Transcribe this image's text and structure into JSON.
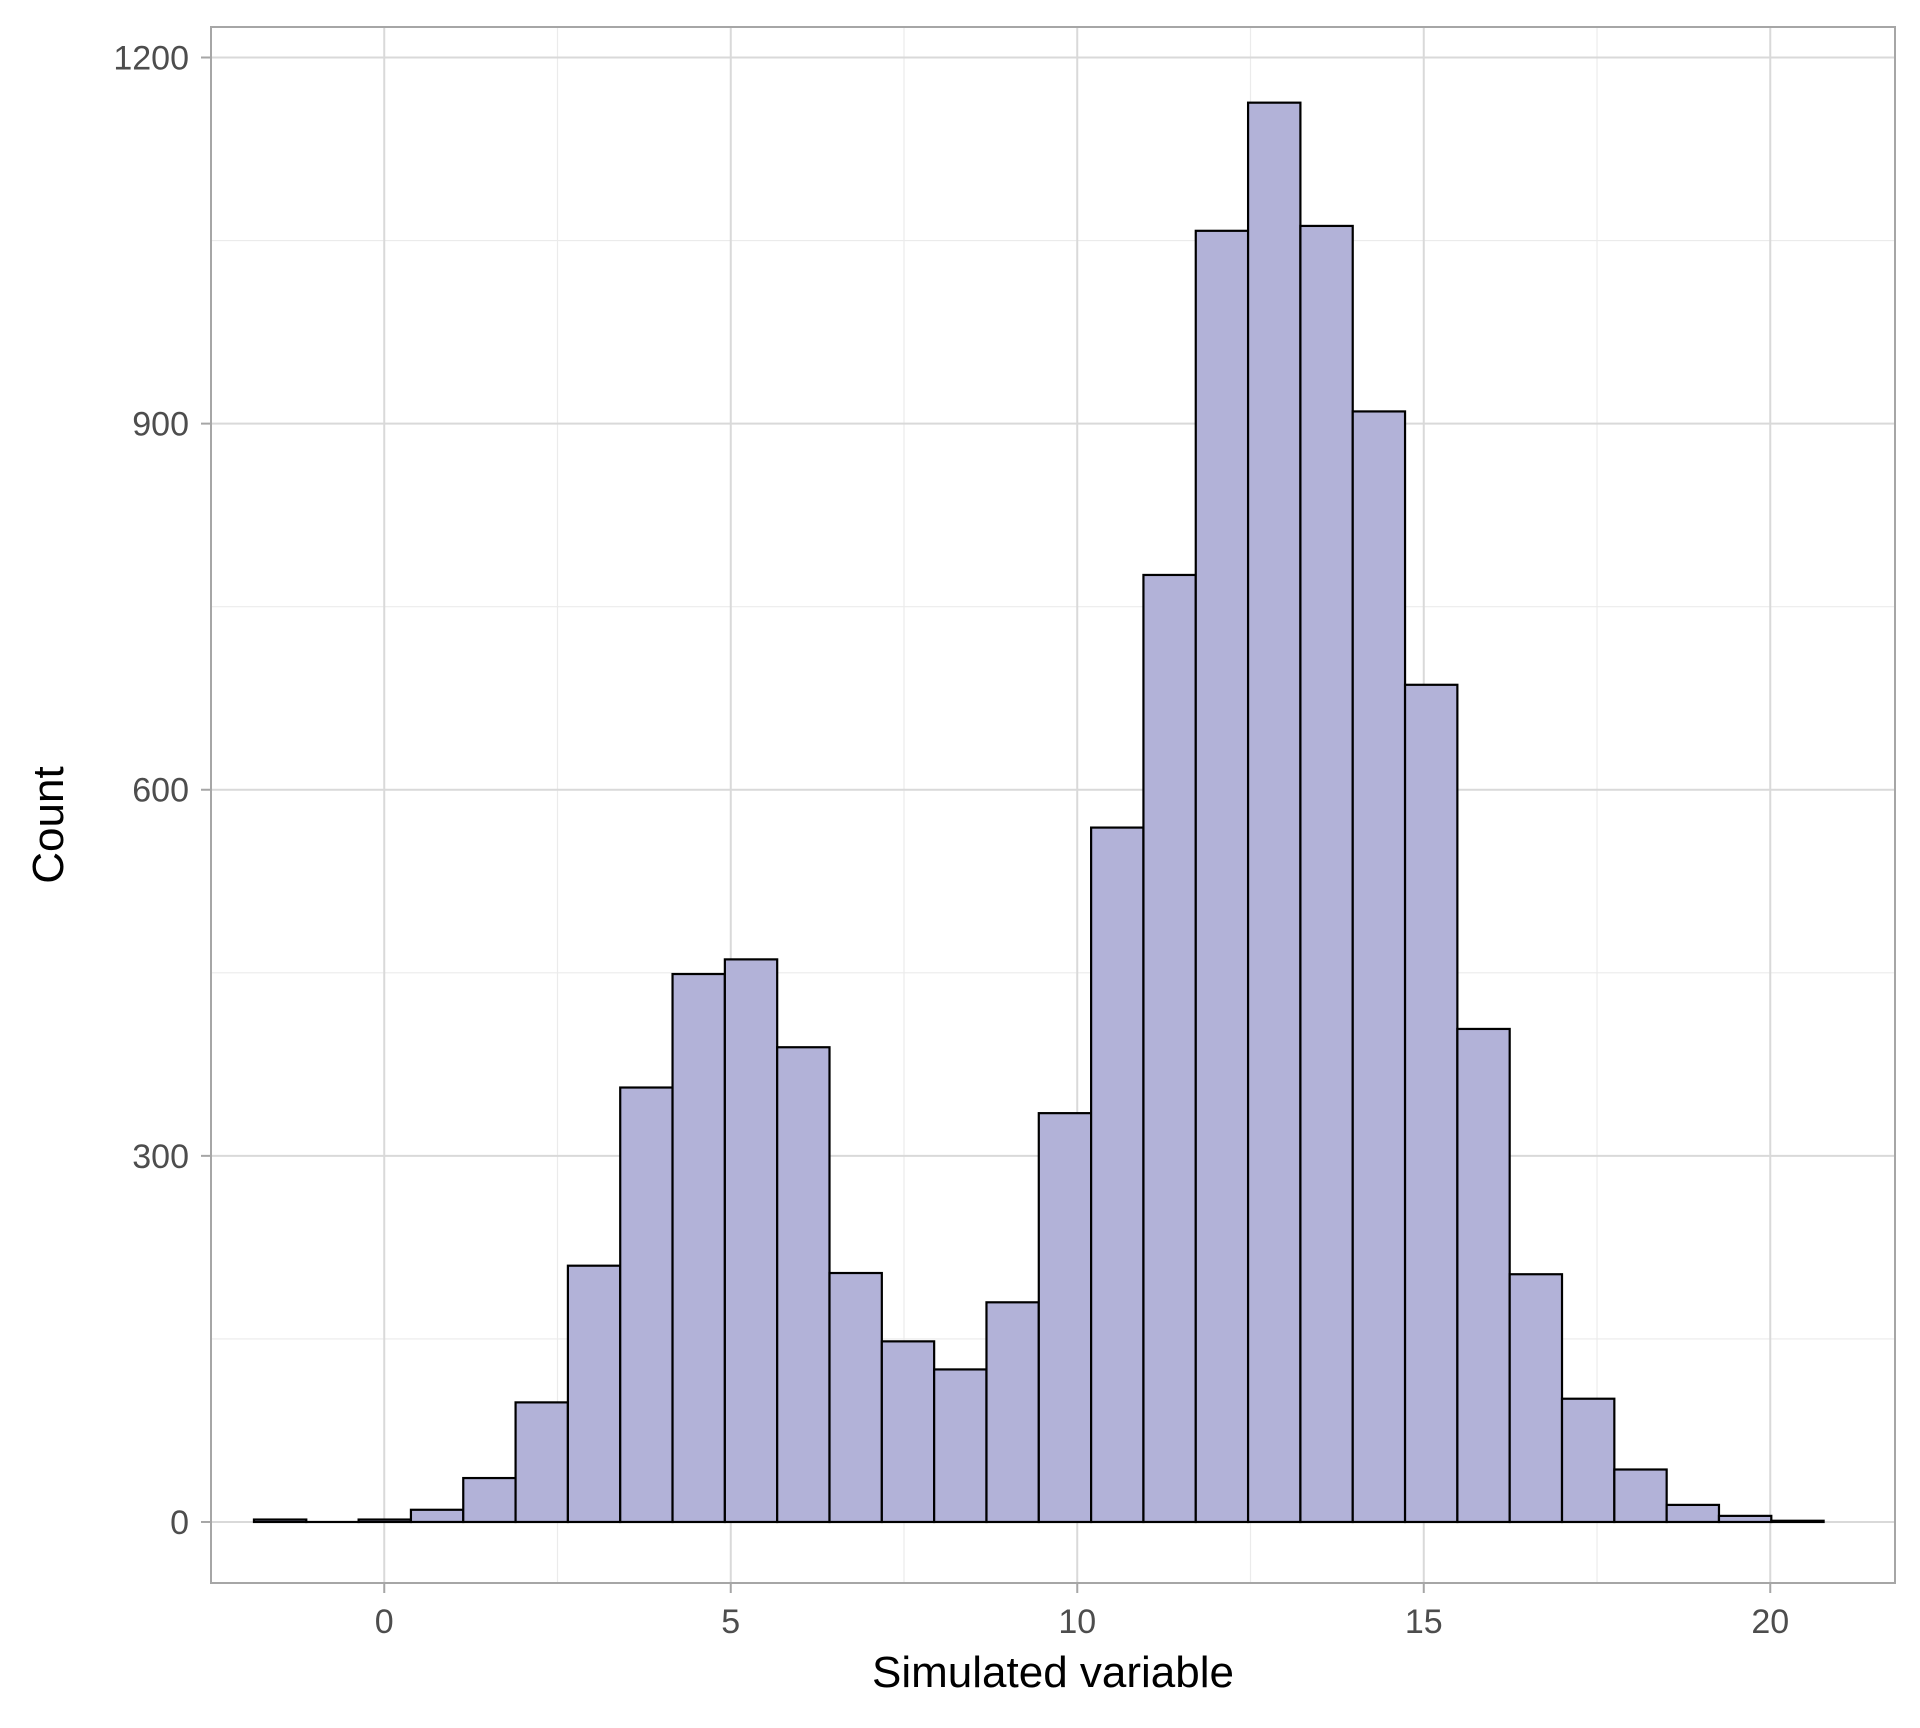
{
  "chart_data": {
    "type": "bar",
    "subtype": "histogram",
    "xlabel": "Simulated variable",
    "ylabel": "Count",
    "xlim": [
      -2.5,
      21.8
    ],
    "ylim": [
      -50,
      1225
    ],
    "x_ticks": [
      "0",
      "5",
      "10",
      "15",
      "20"
    ],
    "y_ticks": [
      "0",
      "300",
      "600",
      "900",
      "1200"
    ],
    "grid": true,
    "bin_width": 0.755,
    "bins": [
      {
        "x0": -1.88,
        "x1": -1.125,
        "count": 2
      },
      {
        "x0": -1.125,
        "x1": -0.37,
        "count": 0
      },
      {
        "x0": -0.37,
        "x1": 0.385,
        "count": 2
      },
      {
        "x0": 0.385,
        "x1": 1.14,
        "count": 10
      },
      {
        "x0": 1.14,
        "x1": 1.895,
        "count": 36
      },
      {
        "x0": 1.895,
        "x1": 2.65,
        "count": 98
      },
      {
        "x0": 2.65,
        "x1": 3.405,
        "count": 210
      },
      {
        "x0": 3.405,
        "x1": 4.16,
        "count": 356
      },
      {
        "x0": 4.16,
        "x1": 4.915,
        "count": 449
      },
      {
        "x0": 4.915,
        "x1": 5.67,
        "count": 461
      },
      {
        "x0": 5.67,
        "x1": 6.425,
        "count": 389
      },
      {
        "x0": 6.425,
        "x1": 7.18,
        "count": 204
      },
      {
        "x0": 7.18,
        "x1": 7.935,
        "count": 148
      },
      {
        "x0": 7.935,
        "x1": 8.69,
        "count": 125
      },
      {
        "x0": 8.69,
        "x1": 9.445,
        "count": 180
      },
      {
        "x0": 9.445,
        "x1": 10.2,
        "count": 335
      },
      {
        "x0": 10.2,
        "x1": 10.955,
        "count": 569
      },
      {
        "x0": 10.955,
        "x1": 11.71,
        "count": 776
      },
      {
        "x0": 11.71,
        "x1": 12.465,
        "count": 1058
      },
      {
        "x0": 12.465,
        "x1": 13.22,
        "count": 1163
      },
      {
        "x0": 13.22,
        "x1": 13.975,
        "count": 1062
      },
      {
        "x0": 13.975,
        "x1": 14.73,
        "count": 910
      },
      {
        "x0": 14.73,
        "x1": 15.485,
        "count": 686
      },
      {
        "x0": 15.485,
        "x1": 16.24,
        "count": 404
      },
      {
        "x0": 16.24,
        "x1": 16.995,
        "count": 203
      },
      {
        "x0": 16.995,
        "x1": 17.75,
        "count": 101
      },
      {
        "x0": 17.75,
        "x1": 18.505,
        "count": 43
      },
      {
        "x0": 18.505,
        "x1": 19.26,
        "count": 14
      },
      {
        "x0": 19.26,
        "x1": 20.015,
        "count": 5
      },
      {
        "x0": 20.015,
        "x1": 20.77,
        "count": 1
      }
    ],
    "colors": {
      "bar_fill": "#b2b2d8",
      "bar_stroke": "#000000",
      "panel_border": "#a6a6a6",
      "grid_major": "#d9d9d9",
      "grid_minor": "#ebebeb",
      "tick_label": "#4d4d4d",
      "axis_title": "#000000"
    }
  }
}
